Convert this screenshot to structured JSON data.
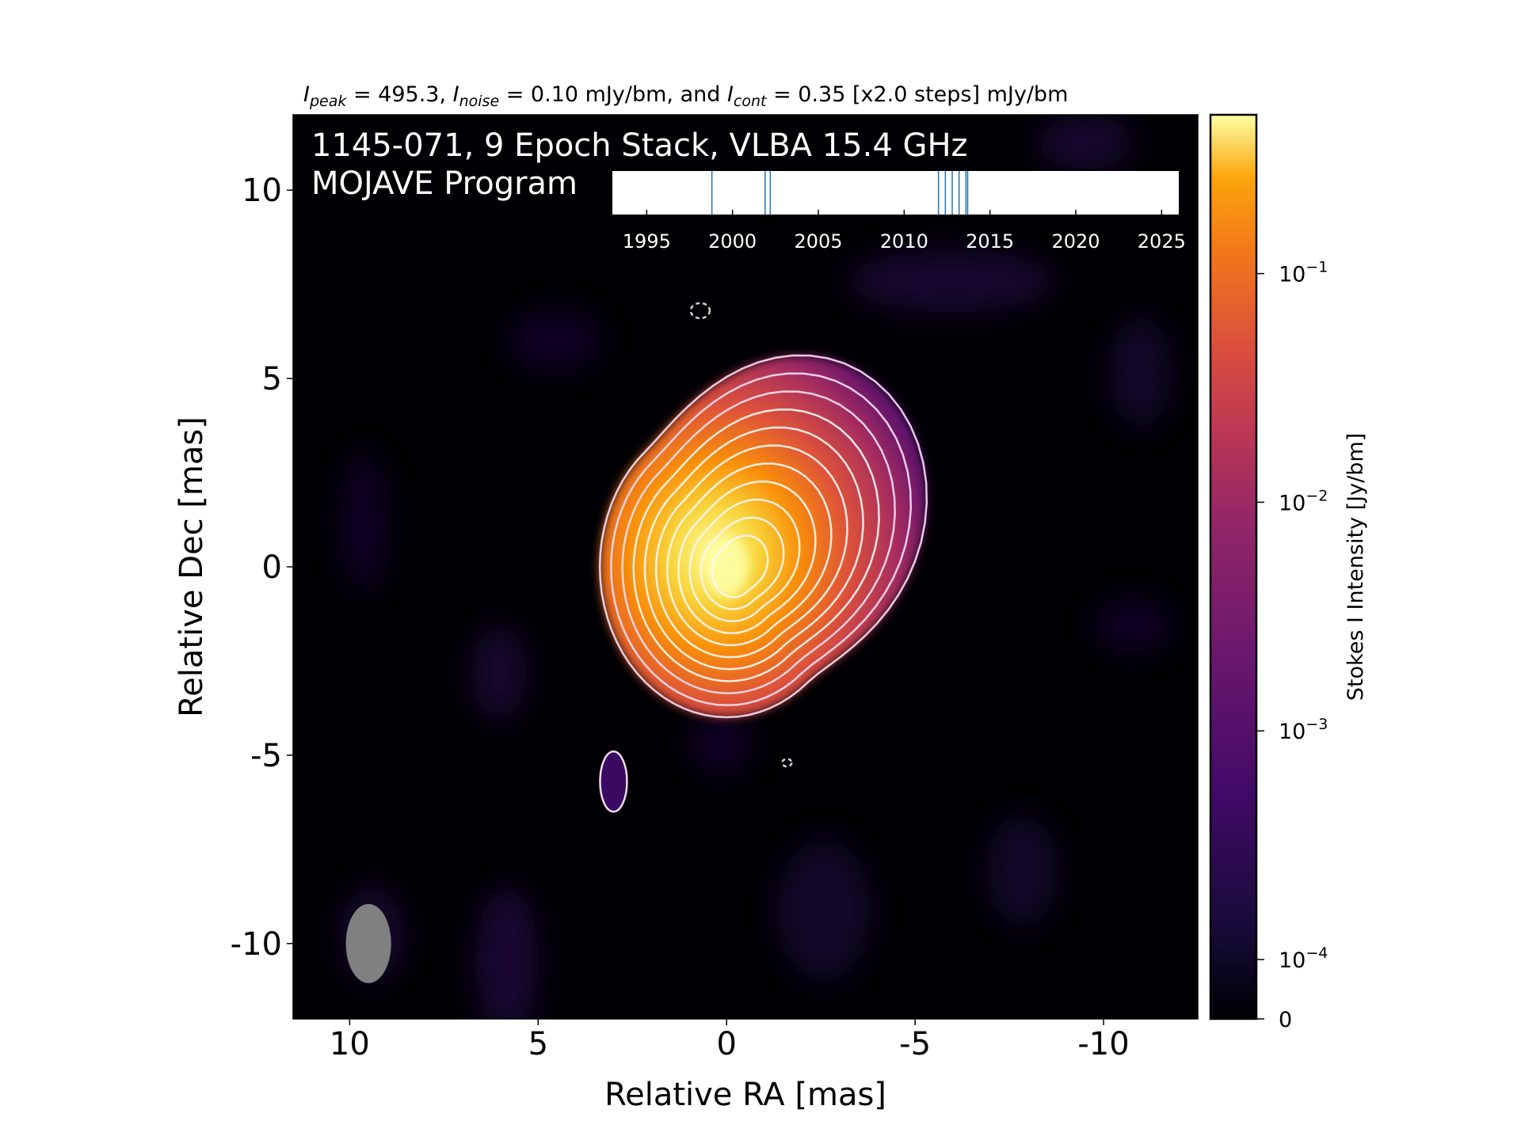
{
  "chart_data": {
    "type": "heatmap",
    "title_parts": {
      "peak_sym": "I",
      "peak_sub": "peak",
      "peak_val": " = 495.3, ",
      "noise_sym": "I",
      "noise_sub": "noise",
      "noise_val": " = 0.10 mJy/bm, and ",
      "cont_sym": "I",
      "cont_sub": "cont",
      "cont_val": " = 0.35 [x2.0 steps] mJy/bm"
    },
    "image_label_line1": "1145-071, 9 Epoch Stack, VLBA 15.4 GHz",
    "image_label_line2": "MOJAVE Program",
    "xlabel": "Relative RA [mas]",
    "ylabel": "Relative Dec [mas]",
    "xlim": [
      11.5,
      -12.5
    ],
    "ylim": [
      -12,
      12
    ],
    "xticks": [
      10,
      5,
      0,
      -5,
      -10
    ],
    "xtick_labels": [
      "10",
      "5",
      "0",
      "-5",
      "-10"
    ],
    "yticks": [
      10,
      5,
      0,
      -5,
      -10
    ],
    "ytick_labels": [
      "10",
      "5",
      "0",
      "-5",
      "-10"
    ],
    "colormap": "inferno",
    "colorbar": {
      "label": "Stokes I Intensity [Jy/bm]",
      "scale": "log",
      "ticks": [
        {
          "value": 0.1,
          "base": "10",
          "exp": "−1"
        },
        {
          "value": 0.01,
          "base": "10",
          "exp": "−2"
        },
        {
          "value": 0.001,
          "base": "10",
          "exp": "−3"
        },
        {
          "value": 0.0001,
          "base": "10",
          "exp": "−4"
        },
        {
          "value": 0,
          "base": "0",
          "exp": ""
        }
      ]
    },
    "peak_position_mas": [
      0,
      0
    ],
    "contour_levels_mJy_per_bm": [
      0.35,
      0.7,
      1.4,
      2.8,
      5.6,
      11.2,
      22.4,
      44.8,
      89.6,
      179.2,
      358.4
    ],
    "beam": {
      "ra_center": 9.5,
      "dec_center": -10.0,
      "ra_width": 1.2,
      "dec_height": 2.1
    },
    "isolated_contours": [
      {
        "ra": 3.0,
        "dec": -5.7,
        "kind": "positive"
      },
      {
        "ra": 0.7,
        "dec": 6.8,
        "kind": "negative"
      },
      {
        "ra": -1.6,
        "dec": -5.2,
        "kind": "negative"
      }
    ],
    "epoch_timeline": {
      "xlim": [
        1993,
        2026
      ],
      "ticks": [
        1995,
        2000,
        2005,
        2010,
        2015,
        2020,
        2025
      ],
      "tick_labels": [
        "1995",
        "2000",
        "2005",
        "2010",
        "2015",
        "2020",
        "2025"
      ],
      "epochs": [
        1998.8,
        2001.9,
        2002.2,
        2012.0,
        2012.4,
        2012.8,
        2013.2,
        2013.6,
        2013.7
      ]
    }
  }
}
